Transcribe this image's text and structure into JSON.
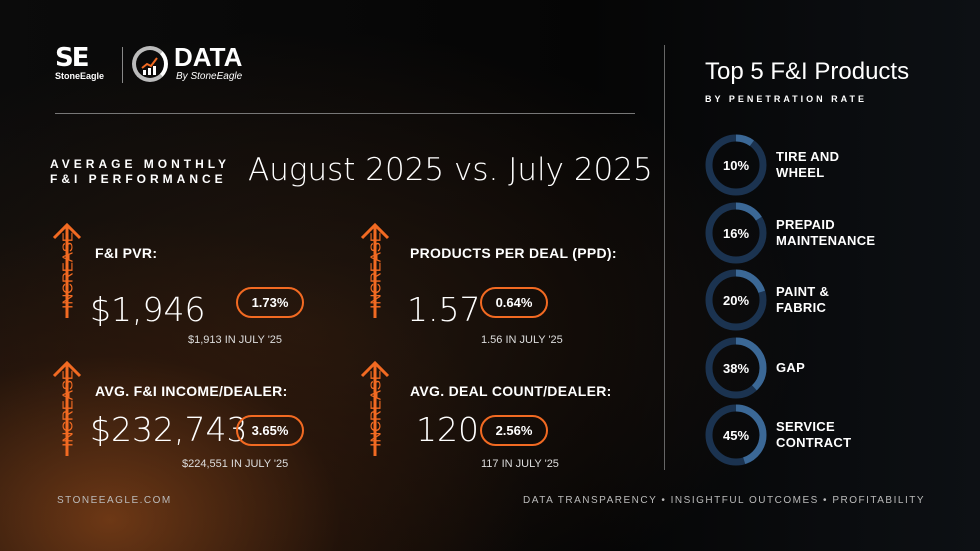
{
  "logo": {
    "brand": "StoneEagle",
    "mark": "SE",
    "product": "DATA",
    "byline": "By StoneEagle"
  },
  "header": {
    "section_title_line1": "AVERAGE MONTHLY",
    "section_title_line2": "F&I PERFORMANCE",
    "period": "August 2025 vs. July 2025"
  },
  "kpis": [
    {
      "trend": "INCREASE",
      "label": "F&I PVR:",
      "value": "$1,946",
      "change": "1.73%",
      "prior": "$1,913 IN JULY '25"
    },
    {
      "trend": "INCREASE",
      "label": "PRODUCTS PER DEAL (PPD):",
      "value": "1.57",
      "change": "0.64%",
      "prior": "1.56 IN JULY '25"
    },
    {
      "trend": "INCREASE",
      "label": "AVG. F&I INCOME/DEALER:",
      "value": "$232,743",
      "change": "3.65%",
      "prior": "$224,551 IN JULY '25"
    },
    {
      "trend": "INCREASE",
      "label": "AVG. DEAL COUNT/DEALER:",
      "value": "120",
      "change": "2.56%",
      "prior": "117 IN JULY '25"
    }
  ],
  "top_products": {
    "title": "Top 5 F&I Products",
    "subtitle": "BY PENETRATION RATE",
    "items": [
      {
        "pct_label": "10%",
        "value": 10,
        "line1": "TIRE AND",
        "line2": "WHEEL"
      },
      {
        "pct_label": "16%",
        "value": 16,
        "line1": "PREPAID",
        "line2": "MAINTENANCE"
      },
      {
        "pct_label": "20%",
        "value": 20,
        "line1": "PAINT &",
        "line2": "FABRIC"
      },
      {
        "pct_label": "38%",
        "value": 38,
        "line1": "GAP",
        "line2": ""
      },
      {
        "pct_label": "45%",
        "value": 45,
        "line1": "SERVICE",
        "line2": "CONTRACT"
      }
    ]
  },
  "footer": {
    "website": "STONEEAGLE.COM",
    "tagline": "DATA TRANSPARENCY • INSIGHTFUL OUTCOMES • PROFITABILITY"
  },
  "colors": {
    "accent": "#f26a22",
    "donut_track": "#1b3350",
    "donut_fill": "#3b6896"
  }
}
